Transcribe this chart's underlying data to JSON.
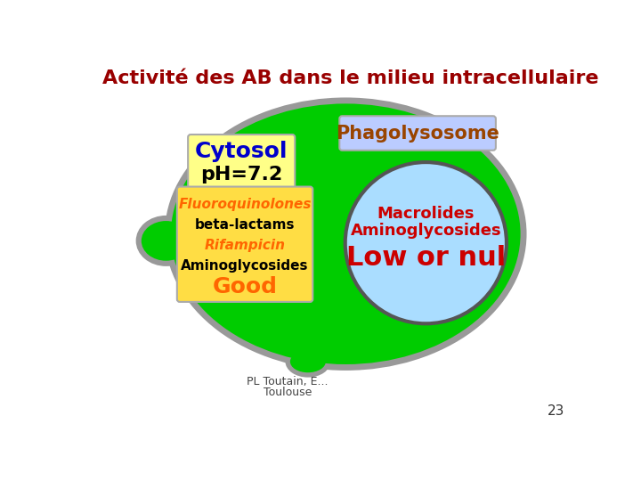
{
  "title": "Activité des AB dans le milieu intracellulaire",
  "title_color": "#990000",
  "title_fontsize": 16,
  "bg_color": "#ffffff",
  "cell_color": "#00cc00",
  "cell_edge_color": "#999999",
  "phagolysosome_label": "Phagolysosome",
  "phagolysosome_box_color": "#bbccff",
  "phagolysosome_text_color": "#994400",
  "cytosol_label_line1": "Cytosol",
  "cytosol_label_line2": "pH=7.2",
  "cytosol_box_color": "#ffff88",
  "cytosol_text_color_1": "#0000cc",
  "cytosol_text_color_2": "#000000",
  "drug_box_color": "#ffdd44",
  "drug_line1": "Fluoroquinolones",
  "drug_line1_color": "#ff6600",
  "drug_line2": "beta-lactams",
  "drug_line2_color": "#000000",
  "drug_line3": "Rifampicin",
  "drug_line3_color": "#ff6600",
  "drug_line4": "Aminoglycosides",
  "drug_line4_color": "#000000",
  "drug_line5": "Good",
  "drug_line5_color": "#ff6600",
  "circle_color": "#aaddff",
  "circle_edge_color": "#555555",
  "circle_line1": "Macrolides",
  "circle_line1_color": "#cc0000",
  "circle_line2": "Aminoglycosides",
  "circle_line2_color": "#cc0000",
  "circle_line3": "Low or nul",
  "circle_line3_color": "#cc0000",
  "footer_line1": "PL Toutain, E...",
  "footer_line2": "Toulouse",
  "page_num": "23"
}
